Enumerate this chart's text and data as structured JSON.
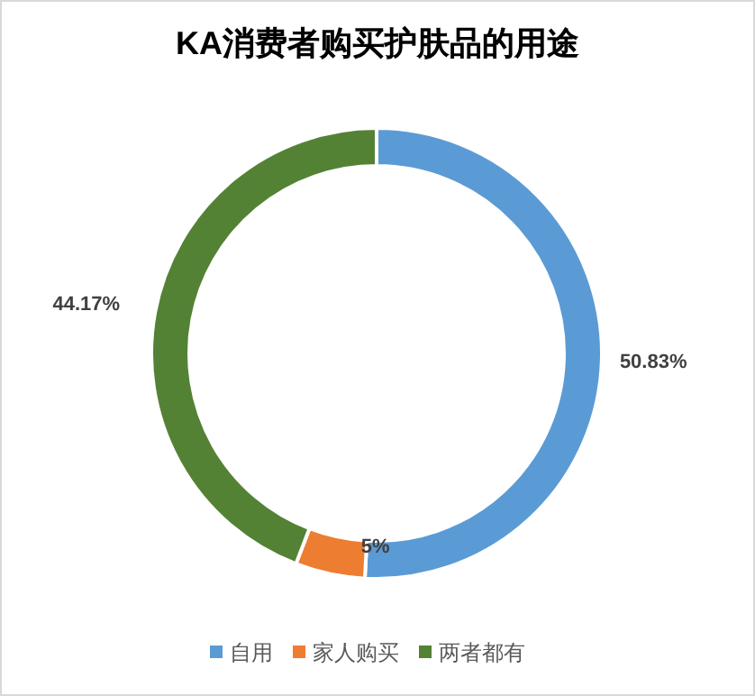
{
  "chart_data": {
    "type": "donut",
    "title": "KA消费者购买护肤品的用途",
    "categories": [
      "自用",
      "家人购买",
      "两者都有"
    ],
    "values": [
      50.83,
      5,
      44.17
    ],
    "colors": [
      "#5b9bd5",
      "#ed7d31",
      "#548235"
    ],
    "value_labels": [
      "50.83%",
      "5%",
      "44.17%"
    ],
    "legend": "bottom"
  }
}
